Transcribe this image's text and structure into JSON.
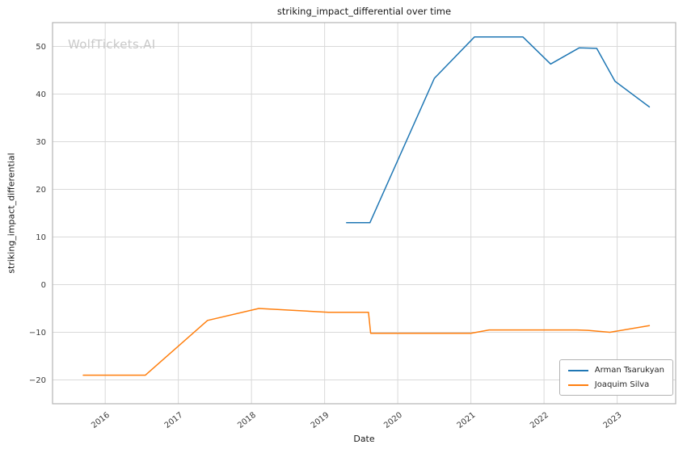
{
  "watermark": "WolfTickets.AI",
  "chart_data": {
    "type": "line",
    "title": "striking_impact_differential over time",
    "xlabel": "Date",
    "ylabel": "striking_impact_differential",
    "xlim": [
      2015.28,
      2023.8
    ],
    "ylim": [
      -25,
      55
    ],
    "x_ticks": [
      2016,
      2017,
      2018,
      2019,
      2020,
      2021,
      2022,
      2023
    ],
    "y_ticks": [
      -20,
      -10,
      0,
      10,
      20,
      30,
      40,
      50
    ],
    "grid": true,
    "legend_position": "lower right",
    "colors": {
      "grid": "#d9d9d9",
      "spine": "#b3b3b3",
      "tick_text": "#3b3b3b",
      "watermark": "#c9c9c9"
    },
    "series": [
      {
        "name": "Arman Tsarukyan",
        "color": "#1f77b4",
        "points": [
          [
            2019.3,
            13.0
          ],
          [
            2019.62,
            13.0
          ],
          [
            2020.5,
            43.3
          ],
          [
            2021.05,
            52.0
          ],
          [
            2021.71,
            52.0
          ],
          [
            2022.09,
            46.3
          ],
          [
            2022.48,
            49.7
          ],
          [
            2022.72,
            49.6
          ],
          [
            2022.97,
            42.7
          ],
          [
            2023.44,
            37.3
          ]
        ]
      },
      {
        "name": "Joaquim Silva",
        "color": "#ff7f0e",
        "points": [
          [
            2015.7,
            -19.0
          ],
          [
            2016.55,
            -19.0
          ],
          [
            2017.4,
            -7.5
          ],
          [
            2018.1,
            -5.0
          ],
          [
            2019.05,
            -5.8
          ],
          [
            2019.6,
            -5.8
          ],
          [
            2019.63,
            -10.2
          ],
          [
            2021.0,
            -10.2
          ],
          [
            2021.25,
            -9.5
          ],
          [
            2022.45,
            -9.5
          ],
          [
            2022.6,
            -9.6
          ],
          [
            2022.9,
            -10.0
          ],
          [
            2023.44,
            -8.6
          ]
        ]
      }
    ]
  }
}
